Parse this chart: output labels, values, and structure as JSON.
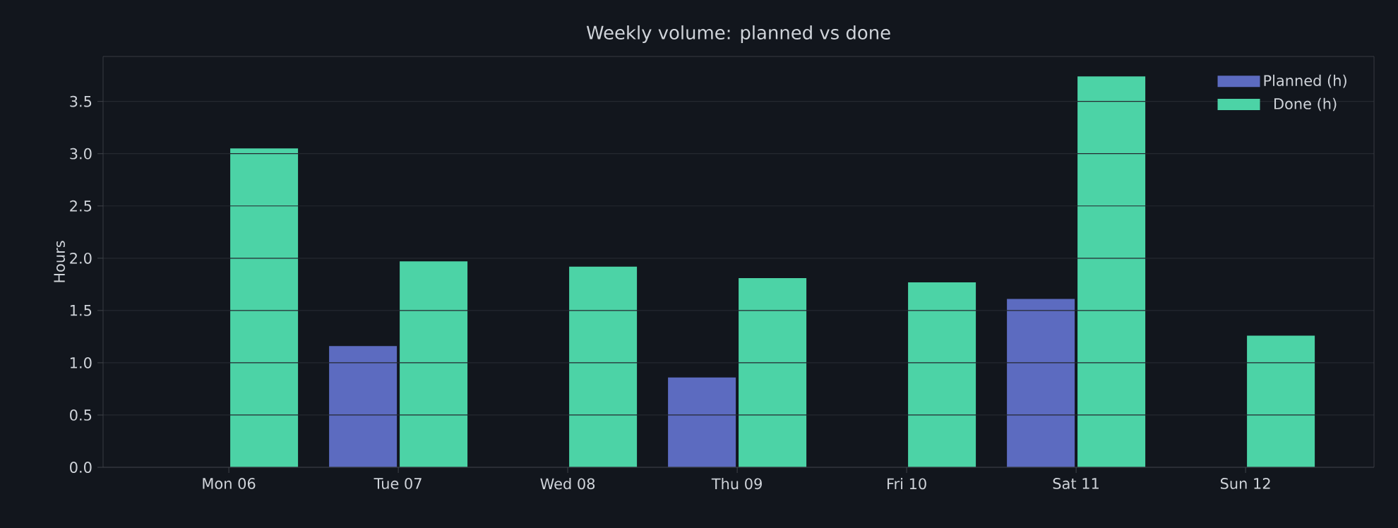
{
  "chart_data": {
    "type": "bar",
    "title": "Weekly volume: planned vs done",
    "ylabel": "Hours",
    "categories": [
      "Mon 06",
      "Tue 07",
      "Wed 08",
      "Thu 09",
      "Fri 10",
      "Sat 11",
      "Sun 12"
    ],
    "series": [
      {
        "name": "Planned (h)",
        "color": "#5c6bc0",
        "values": [
          0,
          1.16,
          0,
          0.86,
          0,
          1.61,
          0
        ]
      },
      {
        "name": "Done (h)",
        "color": "#4cd3a6",
        "values": [
          3.05,
          1.97,
          1.92,
          1.81,
          1.77,
          3.74,
          1.26
        ]
      }
    ],
    "ylim": [
      0,
      3.93
    ],
    "yticks": [
      {
        "value": 0,
        "label": "0.0"
      },
      {
        "value": 0.5,
        "label": "0.5"
      },
      {
        "value": 1,
        "label": "1.0"
      },
      {
        "value": 1.5,
        "label": "1.5"
      },
      {
        "value": 2,
        "label": "2.0"
      },
      {
        "value": 2.5,
        "label": "2.5"
      },
      {
        "value": 3,
        "label": "3.0"
      },
      {
        "value": 3.5,
        "label": "3.5"
      }
    ],
    "grid": "y",
    "legend": "top right"
  }
}
